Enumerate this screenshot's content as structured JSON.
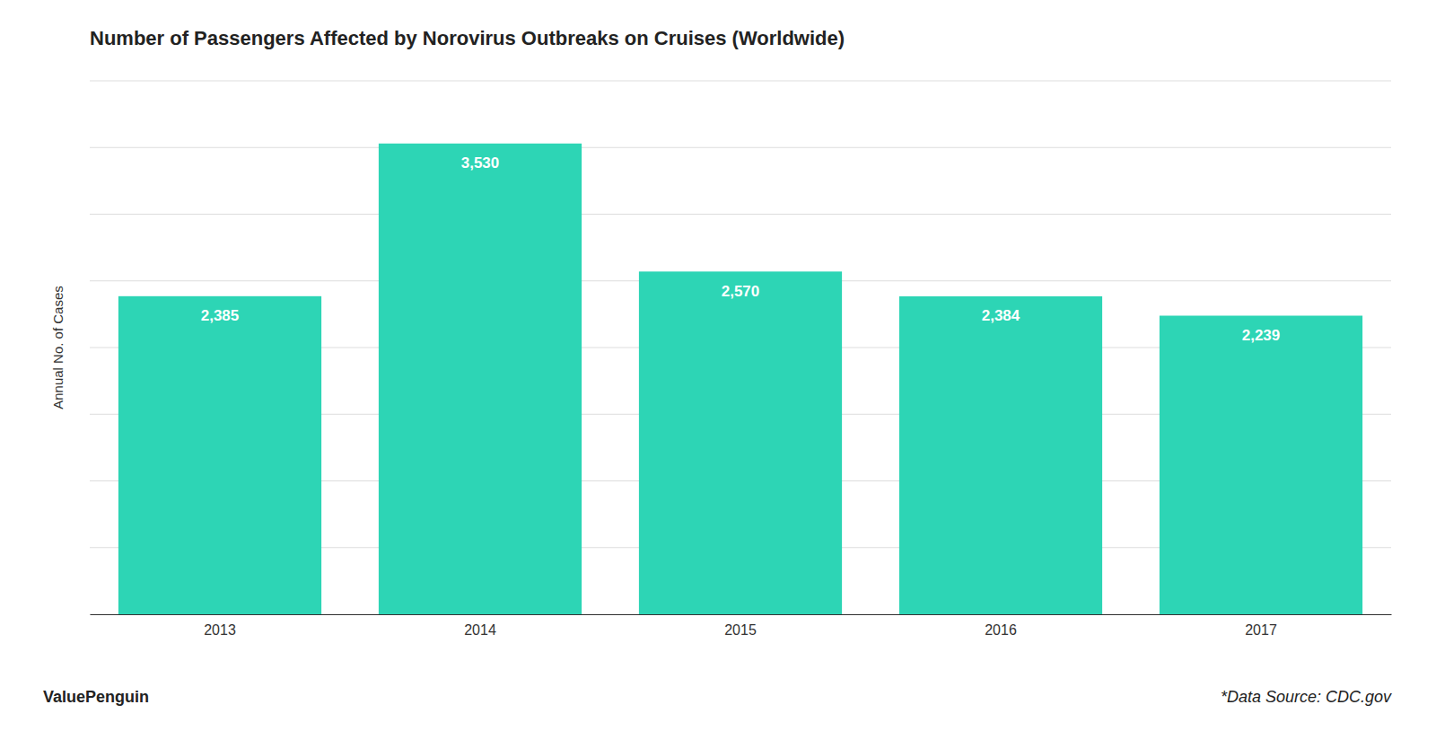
{
  "chart_data": {
    "type": "bar",
    "title": "Number of Passengers Affected by Norovirus Outbreaks on Cruises (Worldwide)",
    "ylabel": "Annual No. of Cases",
    "categories": [
      "2013",
      "2014",
      "2015",
      "2016",
      "2017"
    ],
    "values": [
      2385,
      3530,
      2570,
      2384,
      2239
    ],
    "value_labels": [
      "2,385",
      "3,530",
      "2,570",
      "2,384",
      "2,239"
    ],
    "color": "#2dd5b5",
    "ylim": [
      0,
      4000
    ],
    "yticks": [
      0,
      500,
      1000,
      1500,
      2000,
      2500,
      3000,
      3500,
      4000
    ],
    "grid": true,
    "data_labels": true,
    "tick_labels": "x",
    "annotations": [
      "ValuePenguin",
      "*Data Source: CDC.gov"
    ]
  }
}
